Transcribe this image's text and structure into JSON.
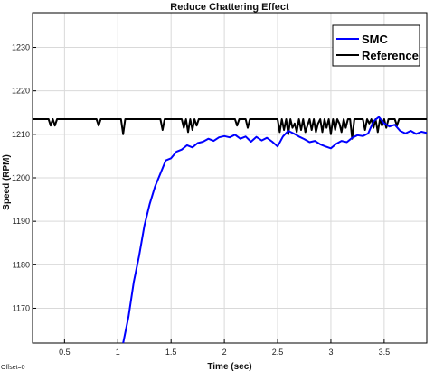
{
  "chart_data": {
    "type": "line",
    "title": "Reduce Chattering Effect",
    "xlabel": "Time (sec)",
    "ylabel": "Speed (RPM)",
    "xlim": [
      0.2,
      3.9
    ],
    "ylim": [
      1162,
      1238
    ],
    "xticks": [
      0.5,
      1,
      1.5,
      2,
      2.5,
      3,
      3.5
    ],
    "xtick_labels": [
      "0.5",
      "1",
      "1.5",
      "2",
      "2.5",
      "3",
      "3.5"
    ],
    "yticks": [
      1170,
      1180,
      1190,
      1200,
      1210,
      1220,
      1230
    ],
    "ytick_labels": [
      "1170",
      "1180",
      "1190",
      "1200",
      "1210",
      "1220",
      "1230"
    ],
    "grid": true,
    "legend_position": "top-right",
    "footnote": "Offset=0",
    "series": [
      {
        "name": "SMC",
        "color": "#0000ff",
        "x": [
          1.05,
          1.1,
          1.15,
          1.2,
          1.25,
          1.3,
          1.35,
          1.4,
          1.45,
          1.5,
          1.55,
          1.6,
          1.65,
          1.7,
          1.75,
          1.8,
          1.85,
          1.9,
          1.95,
          2.0,
          2.05,
          2.1,
          2.15,
          2.2,
          2.25,
          2.3,
          2.35,
          2.4,
          2.45,
          2.5,
          2.55,
          2.6,
          2.65,
          2.7,
          2.75,
          2.8,
          2.85,
          2.9,
          2.95,
          3.0,
          3.05,
          3.1,
          3.15,
          3.2,
          3.25,
          3.3,
          3.35,
          3.4,
          3.45,
          3.5,
          3.55,
          3.6,
          3.65,
          3.7,
          3.75,
          3.8,
          3.85,
          3.9
        ],
        "y": [
          1162,
          1168,
          1176,
          1182,
          1189,
          1194,
          1198,
          1201,
          1204,
          1204.5,
          1206,
          1206.5,
          1207.5,
          1207,
          1208,
          1208.3,
          1209,
          1208.5,
          1209.3,
          1209.6,
          1209.3,
          1209.9,
          1209,
          1209.5,
          1208.3,
          1209.4,
          1208.6,
          1209.2,
          1208.3,
          1207.2,
          1209.5,
          1210.8,
          1210.2,
          1209.5,
          1208.9,
          1208.2,
          1208.5,
          1207.7,
          1207.2,
          1206.8,
          1207.8,
          1208.5,
          1208.2,
          1209.2,
          1209.8,
          1209.6,
          1210.2,
          1213.0,
          1214.0,
          1212.5,
          1211.8,
          1212.2,
          1210.8,
          1210.2,
          1210.8,
          1210.1,
          1210.6,
          1210.3
        ]
      },
      {
        "name": "Reference",
        "color": "#000000",
        "x": [
          0.2,
          0.35,
          0.37,
          0.39,
          0.41,
          0.43,
          0.8,
          0.82,
          0.84,
          0.86,
          1.03,
          1.05,
          1.07,
          1.09,
          1.4,
          1.42,
          1.44,
          1.46,
          1.6,
          1.62,
          1.64,
          1.66,
          1.68,
          1.7,
          1.72,
          1.74,
          1.76,
          1.78,
          2.1,
          2.12,
          2.14,
          2.16,
          2.2,
          2.22,
          2.24,
          2.26,
          2.5,
          2.52,
          2.54,
          2.56,
          2.58,
          2.6,
          2.62,
          2.64,
          2.66,
          2.68,
          2.7,
          2.72,
          2.74,
          2.76,
          2.78,
          2.8,
          2.82,
          2.84,
          2.86,
          2.88,
          2.9,
          2.92,
          2.94,
          2.96,
          2.98,
          3.0,
          3.02,
          3.04,
          3.06,
          3.08,
          3.1,
          3.12,
          3.14,
          3.16,
          3.18,
          3.2,
          3.22,
          3.24,
          3.3,
          3.32,
          3.34,
          3.36,
          3.38,
          3.4,
          3.42,
          3.44,
          3.46,
          3.48,
          3.5,
          3.52,
          3.54,
          3.56,
          3.6,
          3.62,
          3.64,
          3.66,
          3.9
        ],
        "y": [
          1213.5,
          1213.5,
          1212.0,
          1213.5,
          1212.0,
          1213.5,
          1213.5,
          1212.0,
          1213.5,
          1213.5,
          1213.5,
          1210.0,
          1213.5,
          1213.5,
          1213.5,
          1211.0,
          1213.5,
          1213.5,
          1213.5,
          1211.5,
          1213.5,
          1210.5,
          1213.5,
          1211.0,
          1213.5,
          1212.0,
          1213.5,
          1213.5,
          1213.5,
          1212.0,
          1213.5,
          1213.5,
          1213.5,
          1211.5,
          1213.5,
          1213.5,
          1213.5,
          1210.5,
          1213.5,
          1211.0,
          1213.5,
          1210.0,
          1213.5,
          1211.5,
          1212.5,
          1210.5,
          1213.5,
          1211.0,
          1213.5,
          1210.5,
          1212.0,
          1213.5,
          1211.0,
          1213.5,
          1210.5,
          1212.5,
          1213.5,
          1210.5,
          1213.5,
          1211.5,
          1213.5,
          1210.0,
          1213.5,
          1211.0,
          1213.5,
          1212.5,
          1210.5,
          1213.5,
          1211.5,
          1213.5,
          1213.5,
          1209.0,
          1213.5,
          1213.5,
          1213.5,
          1211.0,
          1213.5,
          1212.5,
          1213.5,
          1211.5,
          1213.5,
          1210.5,
          1213.5,
          1212.0,
          1213.5,
          1211.5,
          1213.5,
          1213.5,
          1213.5,
          1212.0,
          1213.5,
          1213.5,
          1213.5
        ]
      }
    ]
  }
}
